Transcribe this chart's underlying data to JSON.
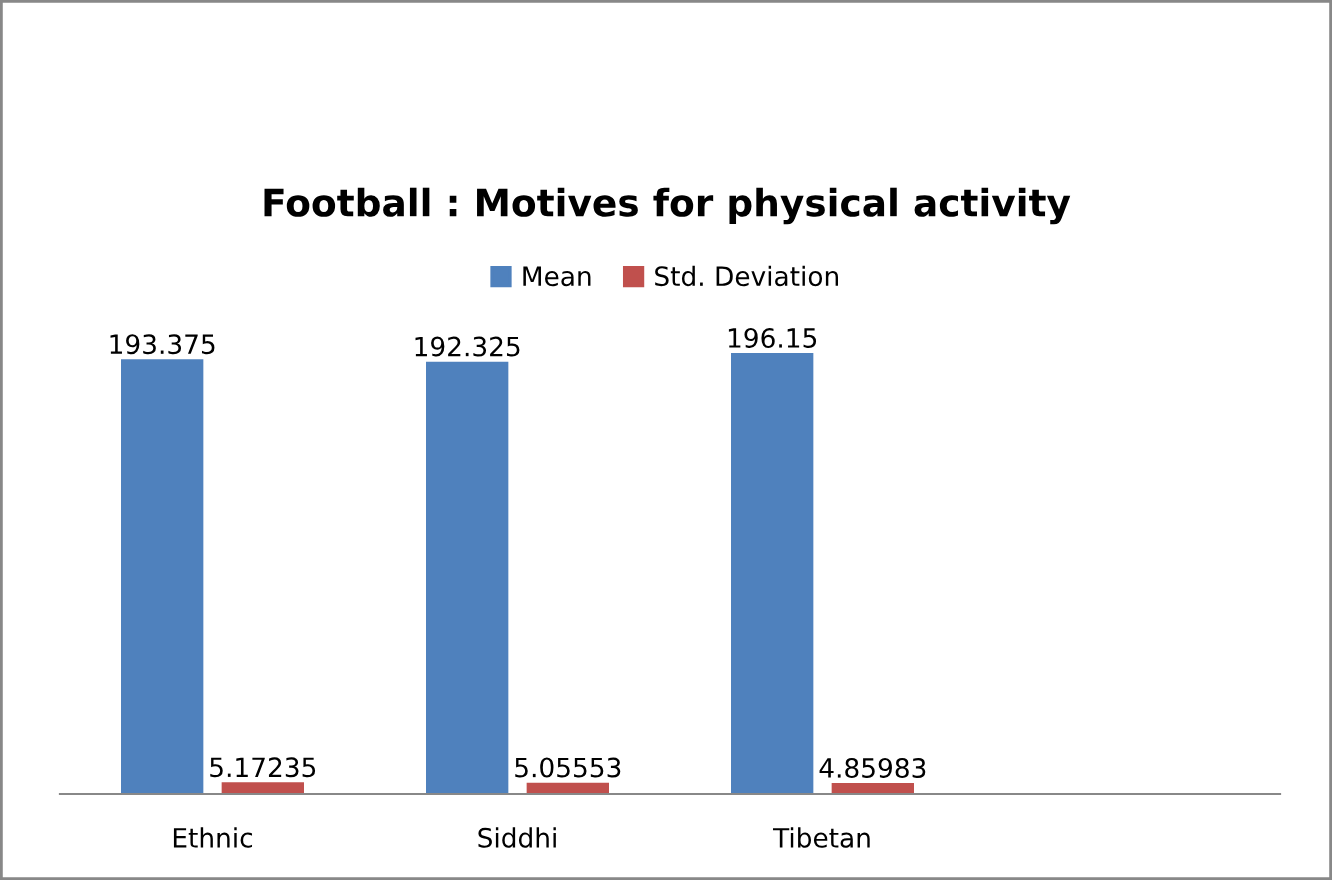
{
  "chart_data": {
    "type": "bar",
    "title": "Football : Motives for physical activity",
    "categories": [
      "Ethnic",
      "Siddhi",
      "Tibetan",
      null
    ],
    "series": [
      {
        "name": "Mean",
        "color": "#4f81bd",
        "values": [
          193.375,
          192.325,
          196.15,
          null
        ]
      },
      {
        "name": "Std. Deviation",
        "color": "#c0504d",
        "values": [
          5.17235,
          5.05553,
          4.85983,
          null
        ]
      }
    ],
    "data_labels": true,
    "legend": "top",
    "grid": false
  }
}
